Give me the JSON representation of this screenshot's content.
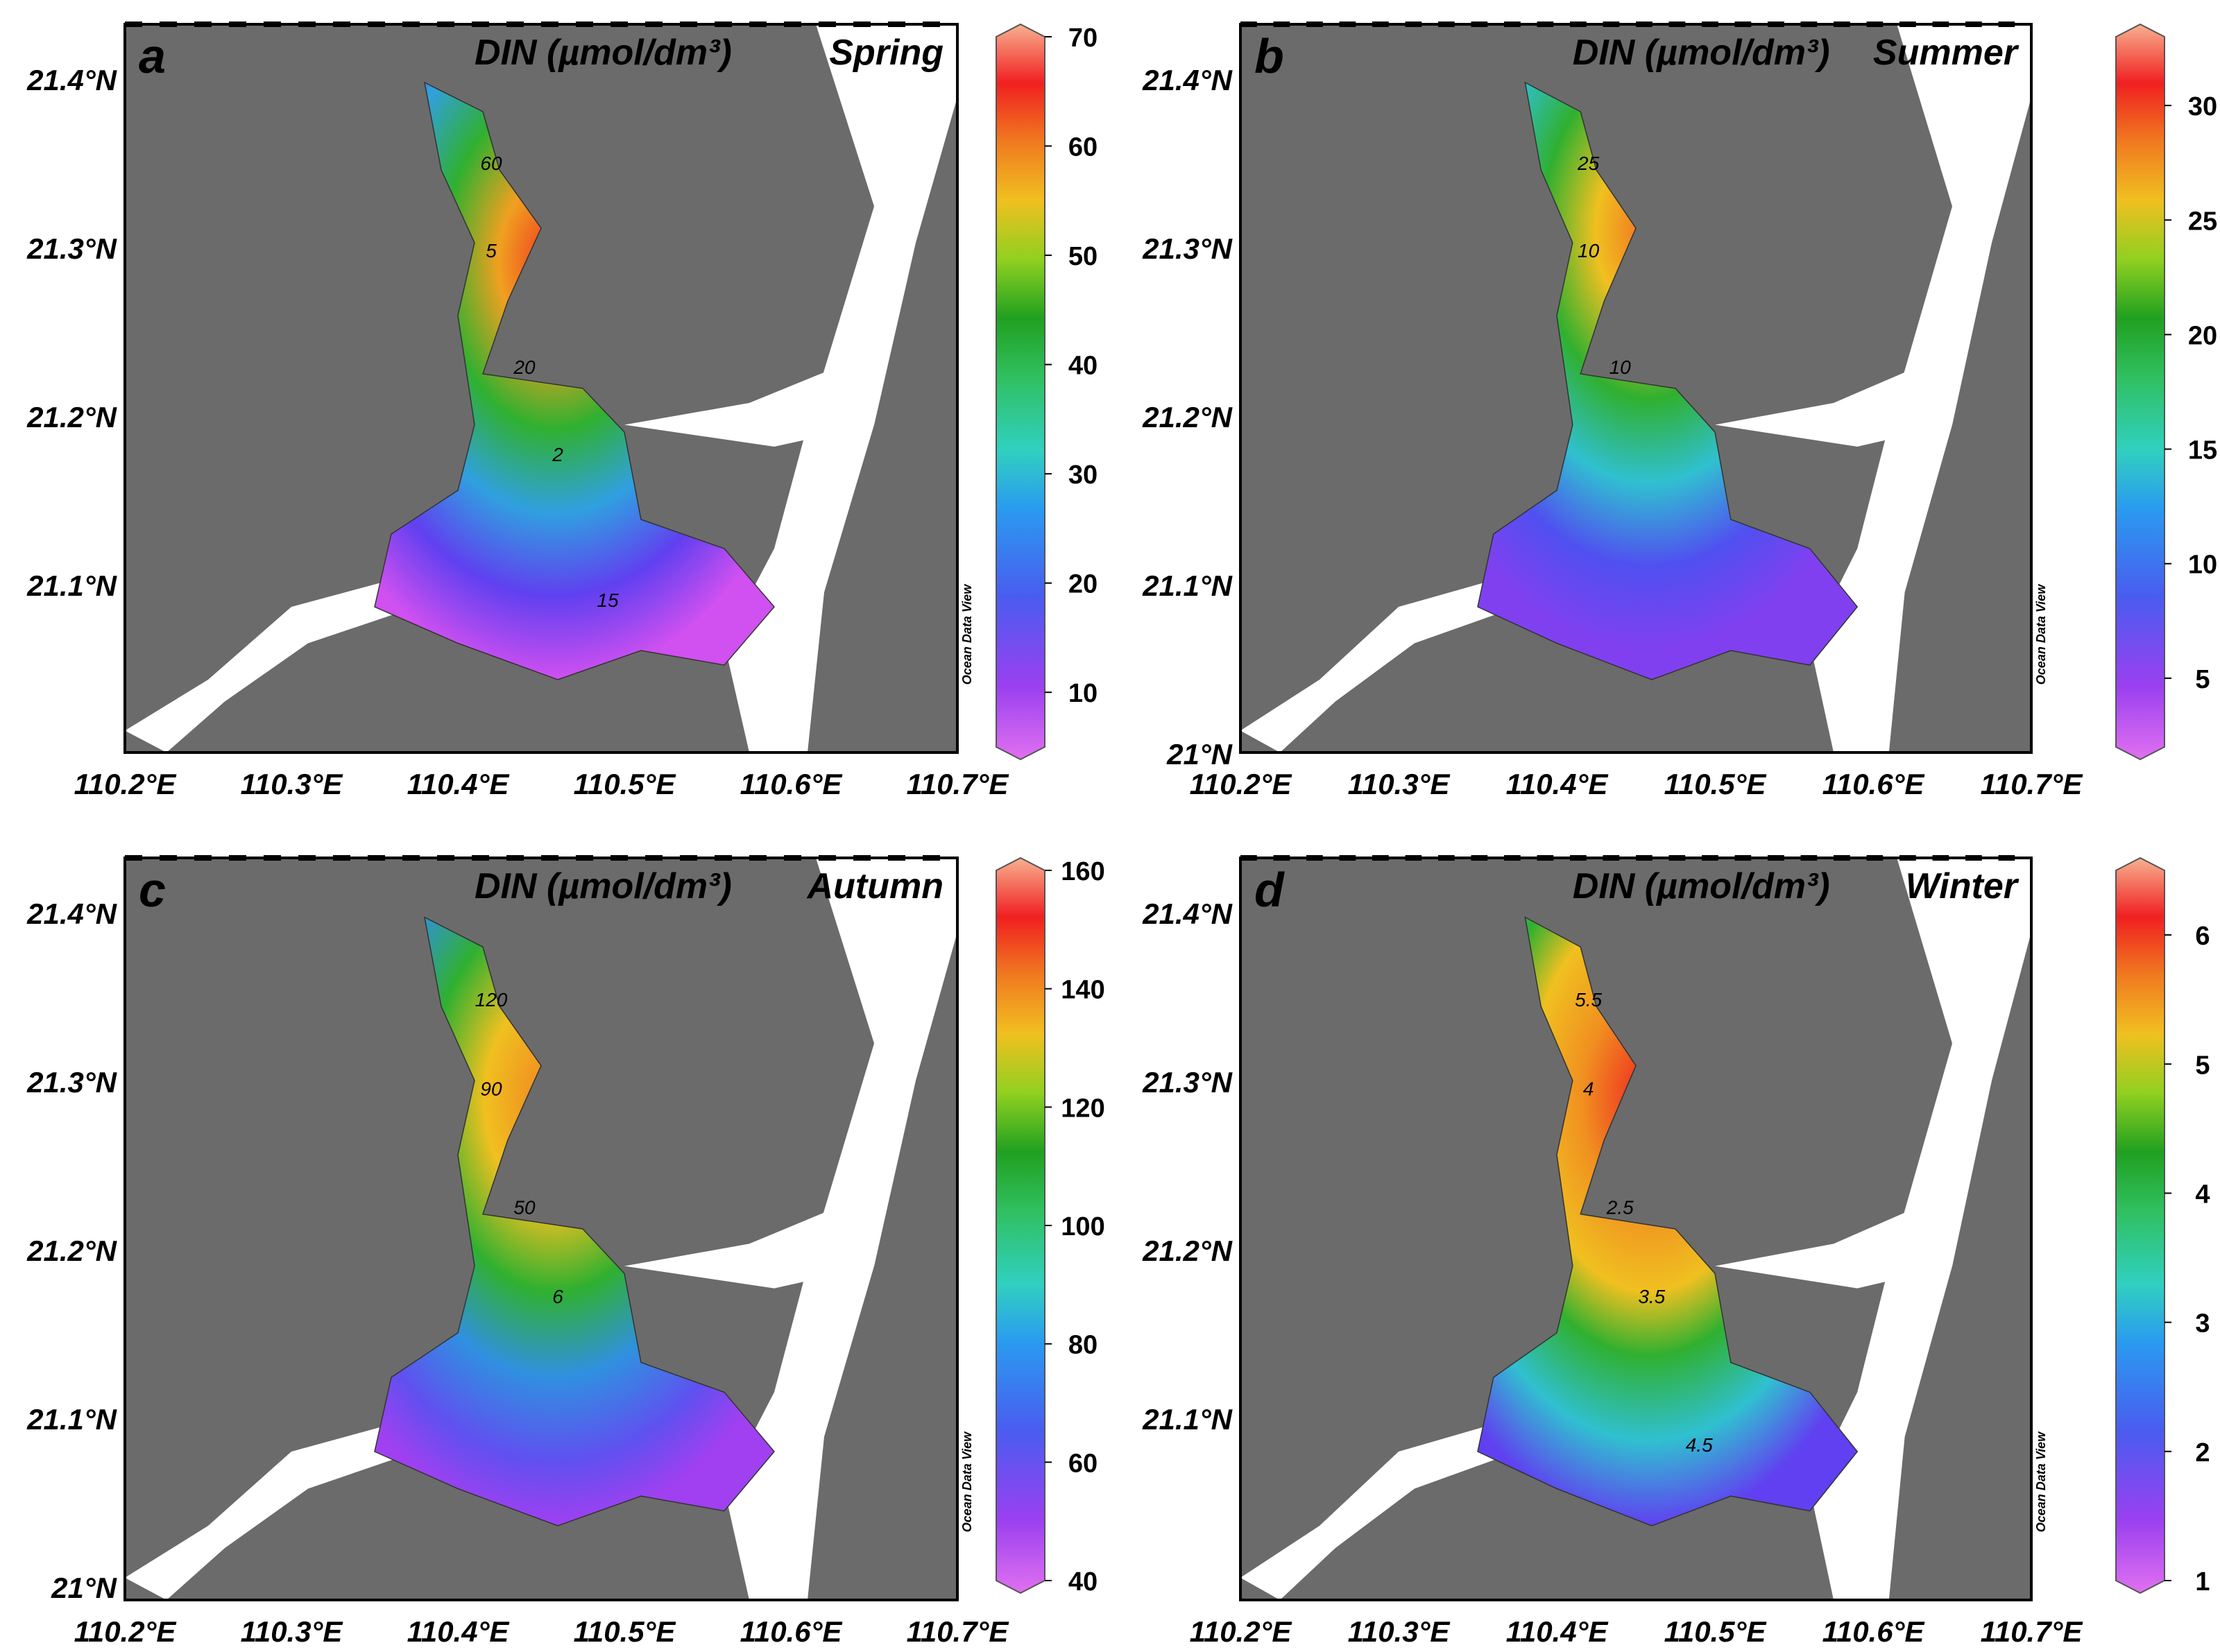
{
  "panels": [
    {
      "id": "a",
      "letter": "a",
      "title": "DIN (µmol/dm³)",
      "season": "Spring",
      "lat_labels": [
        "21.4°N",
        "21.3°N",
        "21.2°N",
        "21.1°N"
      ],
      "lon_labels": [
        "110.2°E",
        "110.3°E",
        "110.4°E",
        "110.5°E",
        "110.6°E",
        "110.7°E"
      ],
      "colorbar": {
        "min": 5,
        "max": 70,
        "ticks": [
          "70",
          "60",
          "50",
          "40",
          "30",
          "20",
          "10"
        ]
      },
      "contour_labels": [
        "60",
        "5",
        "20",
        "2",
        "15"
      ],
      "watermark": "Ocean Data View"
    },
    {
      "id": "b",
      "letter": "b",
      "title": "DIN (µmol/dm³)",
      "season": "Summer",
      "lat_labels": [
        "21.4°N",
        "21.3°N",
        "21.2°N",
        "21.1°N",
        "21°N"
      ],
      "lon_labels": [
        "110.2°E",
        "110.3°E",
        "110.4°E",
        "110.5°E",
        "110.6°E",
        "110.7°E"
      ],
      "colorbar": {
        "min": 2,
        "max": 33,
        "ticks": [
          "30",
          "25",
          "20",
          "15",
          "10",
          "5"
        ]
      },
      "contour_labels": [
        "25",
        "10",
        "10"
      ],
      "watermark": "Ocean Data View"
    },
    {
      "id": "c",
      "letter": "c",
      "title": "DIN (µmol/dm³)",
      "season": "Autumn",
      "lat_labels": [
        "21.4°N",
        "21.3°N",
        "21.2°N",
        "21.1°N",
        "21°N"
      ],
      "lon_labels": [
        "110.2°E",
        "110.3°E",
        "110.4°E",
        "110.5°E",
        "110.6°E",
        "110.7°E"
      ],
      "colorbar": {
        "min": 40,
        "max": 160,
        "ticks": [
          "160",
          "140",
          "120",
          "100",
          "80",
          "60",
          "40"
        ]
      },
      "contour_labels": [
        "120",
        "90",
        "50",
        "6"
      ],
      "watermark": "Ocean Data View"
    },
    {
      "id": "d",
      "letter": "d",
      "title": "DIN (µmol/dm³)",
      "season": "Winter",
      "lat_labels": [
        "21.4°N",
        "21.3°N",
        "21.2°N",
        "21.1°N"
      ],
      "lon_labels": [
        "110.2°E",
        "110.3°E",
        "110.4°E",
        "110.5°E",
        "110.6°E",
        "110.7°E"
      ],
      "colorbar": {
        "min": 1,
        "max": 6.5,
        "ticks": [
          "6",
          "5",
          "4",
          "3",
          "2",
          "1"
        ]
      },
      "contour_labels": [
        "5.5",
        "4",
        "2.5",
        "3.5",
        "4.5"
      ],
      "watermark": "Ocean Data View"
    }
  ],
  "colors": {
    "land": "#6b6b6b",
    "water_outside": "#ffffff",
    "frame": "#000000",
    "colormap": [
      "#d65cf0",
      "#7a3cf0",
      "#3b6cf0",
      "#2ec4d8",
      "#3fd07a",
      "#22b020",
      "#8ad020",
      "#f0c020",
      "#f08020",
      "#f02020",
      "#f0a080"
    ]
  }
}
